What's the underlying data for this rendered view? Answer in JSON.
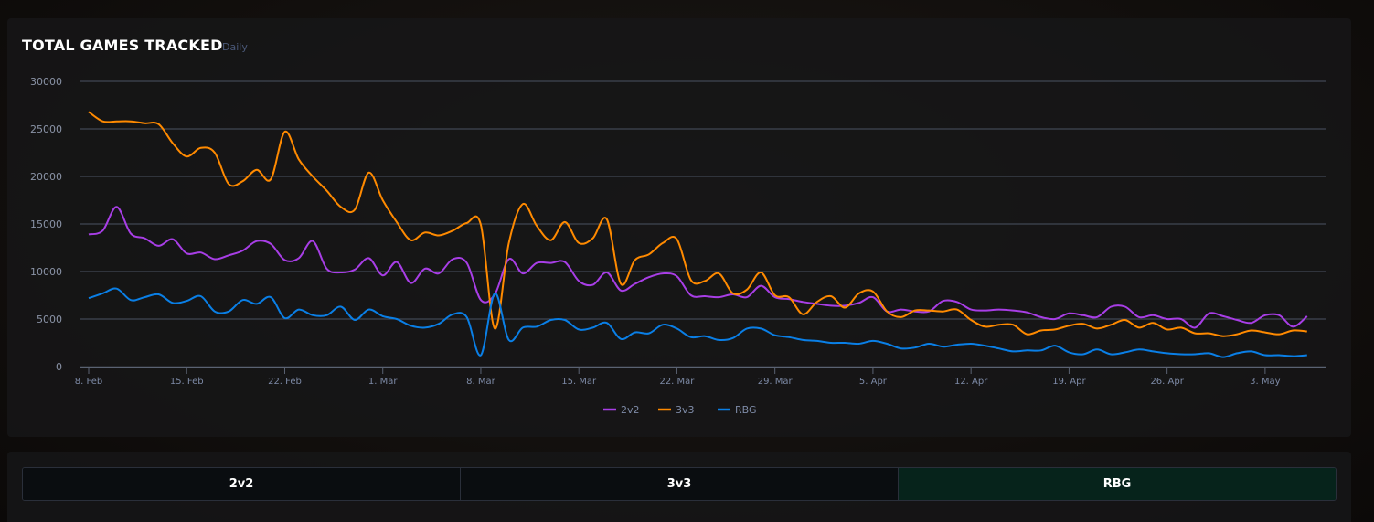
{
  "header": {
    "title": "TOTAL GAMES TRACKED",
    "subtitle": "Daily"
  },
  "tabs": [
    {
      "label": "2v2",
      "active": false
    },
    {
      "label": "3v3",
      "active": false
    },
    {
      "label": "RBG",
      "active": true
    }
  ],
  "chart_data": {
    "type": "line",
    "title": "TOTAL GAMES TRACKED",
    "subtitle": "Daily",
    "xlabel": "",
    "ylabel": "",
    "ylim": [
      0,
      30000
    ],
    "yticks": [
      0,
      5000,
      10000,
      15000,
      20000,
      25000,
      30000
    ],
    "x_start": "8. Feb",
    "x_step": "1 day",
    "xtick_labels": [
      "8. Feb",
      "15. Feb",
      "22. Feb",
      "1. Mar",
      "8. Mar",
      "15. Mar",
      "22. Mar",
      "29. Mar",
      "5. Apr",
      "12. Apr",
      "19. Apr",
      "26. Apr",
      "3. May"
    ],
    "xtick_every_days": 7,
    "grid": true,
    "legend_position": "bottom-center",
    "series": [
      {
        "name": "2v2",
        "color": "#a83ee6",
        "values": [
          13900,
          14300,
          16800,
          14000,
          13500,
          12700,
          13400,
          11900,
          12000,
          11300,
          11700,
          12200,
          13200,
          12900,
          11200,
          11400,
          13200,
          10300,
          9900,
          10200,
          11400,
          9600,
          11000,
          8800,
          10300,
          9800,
          11300,
          10900,
          7000,
          7600,
          11300,
          9800,
          10900,
          10900,
          11000,
          9000,
          8600,
          9900,
          8000,
          8700,
          9400,
          9800,
          9500,
          7500,
          7400,
          7300,
          7600,
          7300,
          8500,
          7300,
          7100,
          6800,
          6600,
          6400,
          6400,
          6700,
          7300,
          5800,
          6000,
          5800,
          5800,
          6900,
          6800,
          6000,
          5900,
          6000,
          5900,
          5700,
          5200,
          5000,
          5600,
          5400,
          5200,
          6300,
          6300,
          5200,
          5400,
          5000,
          5000,
          4100,
          5600,
          5300,
          4900,
          4600,
          5400,
          5400,
          4200,
          5300
        ]
      },
      {
        "name": "3v3",
        "color": "#ff8a00",
        "values": [
          26800,
          25800,
          25800,
          25800,
          25600,
          25500,
          23500,
          22100,
          23000,
          22500,
          19200,
          19500,
          20700,
          19700,
          24700,
          21800,
          20000,
          18500,
          16800,
          16500,
          20400,
          17500,
          15200,
          13300,
          14100,
          13800,
          14300,
          15100,
          14900,
          4000,
          13000,
          17100,
          14800,
          13300,
          15200,
          13000,
          13500,
          15500,
          8700,
          11200,
          11800,
          13000,
          13400,
          9100,
          9000,
          9800,
          7700,
          8100,
          9900,
          7500,
          7300,
          5500,
          6800,
          7400,
          6200,
          7700,
          7900,
          5800,
          5200,
          5900,
          5900,
          5800,
          6000,
          4900,
          4200,
          4400,
          4400,
          3400,
          3800,
          3900,
          4300,
          4500,
          4000,
          4400,
          4900,
          4100,
          4600,
          3900,
          4100,
          3500,
          3500,
          3200,
          3400,
          3800,
          3600,
          3400,
          3800,
          3700
        ]
      },
      {
        "name": "RBG",
        "color": "#0a7fe6",
        "values": [
          7200,
          7700,
          8200,
          7000,
          7300,
          7600,
          6700,
          6900,
          7400,
          5800,
          5800,
          7000,
          6600,
          7300,
          5100,
          6000,
          5400,
          5400,
          6300,
          4900,
          6000,
          5300,
          5000,
          4300,
          4100,
          4500,
          5500,
          5200,
          1200,
          7700,
          2800,
          4100,
          4200,
          4900,
          4900,
          3900,
          4100,
          4600,
          2900,
          3600,
          3500,
          4400,
          4000,
          3100,
          3200,
          2800,
          3000,
          4000,
          4000,
          3300,
          3100,
          2800,
          2700,
          2500,
          2500,
          2400,
          2700,
          2400,
          1900,
          2000,
          2400,
          2100,
          2300,
          2400,
          2200,
          1900,
          1600,
          1700,
          1700,
          2200,
          1500,
          1300,
          1800,
          1300,
          1500,
          1800,
          1600,
          1400,
          1300,
          1300,
          1400,
          1000,
          1400,
          1600,
          1200,
          1200,
          1100,
          1200
        ]
      }
    ]
  }
}
